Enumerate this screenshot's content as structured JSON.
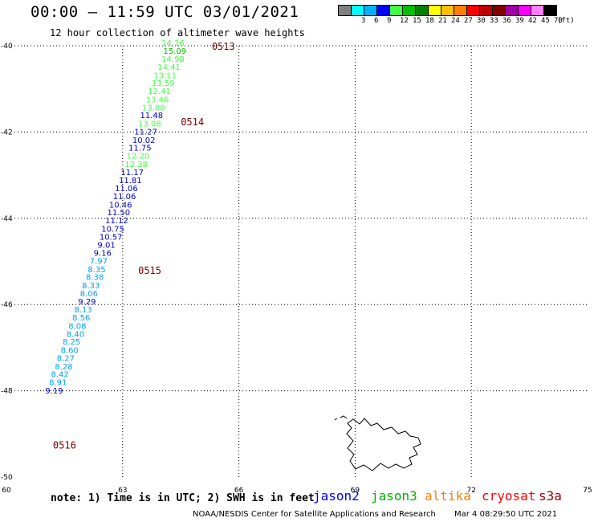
{
  "header": {
    "title": "00:00 – 11:59 UTC 03/01/2021",
    "subtitle": "12 hour collection of altimeter wave heights"
  },
  "scale": {
    "unit": "(ft)",
    "bins": [
      {
        "label": "",
        "color": "#808080"
      },
      {
        "label": "3",
        "color": "#00ffff"
      },
      {
        "label": "6",
        "color": "#00b0ff"
      },
      {
        "label": "9",
        "color": "#0000ff"
      },
      {
        "label": "12",
        "color": "#40ff40"
      },
      {
        "label": "15",
        "color": "#00c000"
      },
      {
        "label": "18",
        "color": "#008000"
      },
      {
        "label": "21",
        "color": "#ffff00"
      },
      {
        "label": "24",
        "color": "#ffc000"
      },
      {
        "label": "27",
        "color": "#ff8000"
      },
      {
        "label": "30",
        "color": "#ff0000"
      },
      {
        "label": "33",
        "color": "#c00000"
      },
      {
        "label": "36",
        "color": "#800000"
      },
      {
        "label": "39",
        "color": "#a000a0"
      },
      {
        "label": "42",
        "color": "#ff00ff"
      },
      {
        "label": "45",
        "color": "#ff80ff"
      },
      {
        "label": "70",
        "color": "#000000"
      }
    ]
  },
  "map": {
    "x_ticks": [
      "60",
      "63",
      "66",
      "69",
      "72",
      "75"
    ],
    "y_ticks": [
      "-40",
      "-42",
      "-44",
      "-46",
      "-48",
      "-50"
    ],
    "lon_range": [
      60,
      75
    ],
    "lat_range": [
      -40,
      -50
    ],
    "times": [
      {
        "label": "0513",
        "lon": 65.3,
        "lat": -40.0
      },
      {
        "label": "0514",
        "lon": 64.5,
        "lat": -41.75
      },
      {
        "label": "0515",
        "lon": 63.4,
        "lat": -45.2
      },
      {
        "label": "0516",
        "lon": 61.2,
        "lat": -49.25
      }
    ],
    "points": [
      {
        "text": "14.26",
        "lat": -40.0,
        "lon": 64.0,
        "color": "#40ff40"
      },
      {
        "text": "15.09",
        "lat": -40.19,
        "lon": 64.05,
        "color": "#00c000"
      },
      {
        "text": "14.98",
        "lat": -40.37,
        "lon": 64.0,
        "color": "#40ff40"
      },
      {
        "text": "14.41",
        "lat": -40.56,
        "lon": 63.9,
        "color": "#40ff40"
      },
      {
        "text": "13.11",
        "lat": -40.75,
        "lon": 63.8,
        "color": "#40ff40"
      },
      {
        "text": "13.59",
        "lat": -40.93,
        "lon": 63.75,
        "color": "#40ff40"
      },
      {
        "text": "12.41",
        "lat": -41.12,
        "lon": 63.65,
        "color": "#40ff40"
      },
      {
        "text": "13.46",
        "lat": -41.31,
        "lon": 63.6,
        "color": "#40ff40"
      },
      {
        "text": "13.08",
        "lat": -41.5,
        "lon": 63.5,
        "color": "#40ff40"
      },
      {
        "text": "11.48",
        "lat": -41.68,
        "lon": 63.45,
        "color": "#0000c0"
      },
      {
        "text": "13.08",
        "lat": -41.87,
        "lon": 63.4,
        "color": "#40ff40"
      },
      {
        "text": "11.27",
        "lat": -42.06,
        "lon": 63.3,
        "color": "#0000c0"
      },
      {
        "text": "10.02",
        "lat": -42.25,
        "lon": 63.25,
        "color": "#0000c0"
      },
      {
        "text": "11.75",
        "lat": -42.43,
        "lon": 63.15,
        "color": "#0000c0"
      },
      {
        "text": "12.20",
        "lat": -42.62,
        "lon": 63.1,
        "color": "#40ff40"
      },
      {
        "text": "12.38",
        "lat": -42.81,
        "lon": 63.05,
        "color": "#40ff40"
      },
      {
        "text": "11.17",
        "lat": -43.0,
        "lon": 62.95,
        "color": "#0000c0"
      },
      {
        "text": "11.81",
        "lat": -43.18,
        "lon": 62.9,
        "color": "#0000c0"
      },
      {
        "text": "11.06",
        "lat": -43.37,
        "lon": 62.8,
        "color": "#0000c0"
      },
      {
        "text": "11.06",
        "lat": -43.56,
        "lon": 62.75,
        "color": "#0000c0"
      },
      {
        "text": "10.46",
        "lat": -43.75,
        "lon": 62.65,
        "color": "#0000c0"
      },
      {
        "text": "11.50",
        "lat": -43.93,
        "lon": 62.6,
        "color": "#0000c0"
      },
      {
        "text": "11.12",
        "lat": -44.12,
        "lon": 62.55,
        "color": "#0000c0"
      },
      {
        "text": "10.75",
        "lat": -44.31,
        "lon": 62.45,
        "color": "#0000c0"
      },
      {
        "text": "10.57",
        "lat": -44.5,
        "lon": 62.4,
        "color": "#0000c0"
      },
      {
        "text": "9.01",
        "lat": -44.68,
        "lon": 62.35,
        "color": "#0000c0"
      },
      {
        "text": "9.16",
        "lat": -44.87,
        "lon": 62.25,
        "color": "#0000c0"
      },
      {
        "text": "7.97",
        "lat": -45.06,
        "lon": 62.15,
        "color": "#00a0ff"
      },
      {
        "text": "8.35",
        "lat": -45.25,
        "lon": 62.1,
        "color": "#00a0ff"
      },
      {
        "text": "8.38",
        "lat": -45.43,
        "lon": 62.05,
        "color": "#00a0ff"
      },
      {
        "text": "8.33",
        "lat": -45.62,
        "lon": 61.95,
        "color": "#00a0ff"
      },
      {
        "text": "8.06",
        "lat": -45.81,
        "lon": 61.9,
        "color": "#00a0ff"
      },
      {
        "text": "9.29",
        "lat": -46.0,
        "lon": 61.85,
        "color": "#0000c0"
      },
      {
        "text": "8.13",
        "lat": -46.18,
        "lon": 61.75,
        "color": "#00a0ff"
      },
      {
        "text": "8.56",
        "lat": -46.37,
        "lon": 61.7,
        "color": "#00a0ff"
      },
      {
        "text": "8.08",
        "lat": -46.56,
        "lon": 61.6,
        "color": "#00a0ff"
      },
      {
        "text": "8.40",
        "lat": -46.75,
        "lon": 61.55,
        "color": "#00a0ff"
      },
      {
        "text": "8.25",
        "lat": -46.93,
        "lon": 61.45,
        "color": "#00a0ff"
      },
      {
        "text": "8.60",
        "lat": -47.12,
        "lon": 61.4,
        "color": "#00a0ff"
      },
      {
        "text": "8.27",
        "lat": -47.31,
        "lon": 61.3,
        "color": "#00a0ff"
      },
      {
        "text": "8.28",
        "lat": -47.5,
        "lon": 61.25,
        "color": "#00a0ff"
      },
      {
        "text": "8.42",
        "lat": -47.68,
        "lon": 61.15,
        "color": "#00a0ff"
      },
      {
        "text": "8.91",
        "lat": -47.87,
        "lon": 61.1,
        "color": "#00a0ff"
      },
      {
        "text": "9.19",
        "lat": -48.06,
        "lon": 61.0,
        "color": "#0000c0"
      }
    ]
  },
  "note": "note: 1) Time is in UTC; 2) SWH is in feet",
  "satellites": [
    {
      "name": "jason2",
      "color": "#0000ff"
    },
    {
      "name": "jason3",
      "color": "#00b000"
    },
    {
      "name": "altika",
      "color": "#ff8000"
    },
    {
      "name": "cryosat",
      "color": "#ff0000"
    },
    {
      "name": "s3a",
      "color": "#a00000"
    }
  ],
  "footer": {
    "credit": "NOAA/NESDIS Center for Satellite Applications and Research",
    "timestamp": "Mar  4 08:29:50 UTC 2021"
  }
}
